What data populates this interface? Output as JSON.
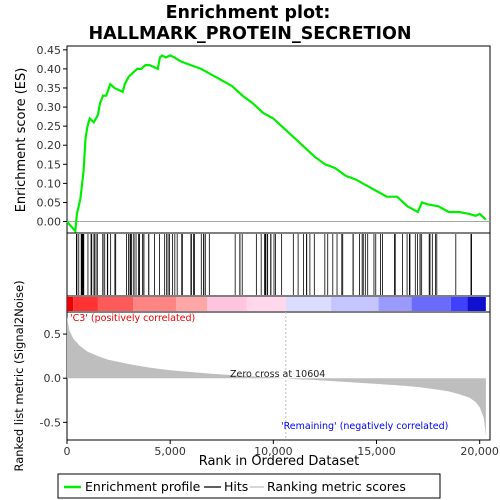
{
  "title_line1": "Enrichment plot:",
  "title_line2": "HALLMARK_PROTEIN_SECRETION",
  "colors": {
    "es_curve": "#00ee00",
    "hits": "#000000",
    "metric_fill": "#bebebe",
    "zero_line": "#c0c0c0",
    "pos_label": "#ee0000",
    "neg_label": "#0000ee",
    "axis": "#000000"
  },
  "annotations": {
    "positive": "'C3' (positively correlated)",
    "zero_cross": "Zero cross at 10604",
    "negative": "'Remaining' (negatively correlated)"
  },
  "legend": {
    "items": [
      {
        "label": "Enrichment profile",
        "icon": "green-line"
      },
      {
        "label": "Hits",
        "icon": "black-line"
      },
      {
        "label": "Ranking metric scores",
        "icon": "gray-line"
      }
    ]
  },
  "chart_data": [
    {
      "type": "line",
      "ylabel": "Enrichment score (ES)",
      "ylim": [
        -0.03,
        0.46
      ],
      "xlim": [
        0,
        20500
      ],
      "yticks": [
        "0.00",
        "0.05",
        "0.10",
        "0.15",
        "0.20",
        "0.25",
        "0.30",
        "0.35",
        "0.40",
        "0.45"
      ],
      "grid": false,
      "series": [
        {
          "x": [
            0,
            400,
            480,
            650,
            800,
            900,
            1000,
            1100,
            1300,
            1500,
            1600,
            1750,
            1900,
            2100,
            2300,
            2500,
            2700,
            2800,
            2900,
            3000,
            3200,
            3400,
            3600,
            3800,
            4000,
            4200,
            4400,
            4500,
            4600,
            4800,
            5000,
            5200,
            5500,
            6000,
            6500,
            7000,
            7500,
            8000,
            8500,
            9000,
            9500,
            10000,
            10500,
            11000,
            11500,
            12000,
            12500,
            13000,
            13500,
            14000,
            14500,
            15000,
            15500,
            16000,
            16500,
            17000,
            17200,
            17500,
            18000,
            18500,
            19000,
            19500,
            19800,
            20000,
            20300
          ],
          "y": [
            0.0,
            -0.025,
            0.02,
            0.06,
            0.13,
            0.22,
            0.25,
            0.27,
            0.26,
            0.28,
            0.31,
            0.33,
            0.33,
            0.36,
            0.35,
            0.345,
            0.34,
            0.36,
            0.37,
            0.38,
            0.39,
            0.4,
            0.4,
            0.41,
            0.41,
            0.405,
            0.4,
            0.43,
            0.435,
            0.43,
            0.435,
            0.43,
            0.42,
            0.41,
            0.4,
            0.385,
            0.37,
            0.355,
            0.33,
            0.31,
            0.285,
            0.27,
            0.245,
            0.22,
            0.195,
            0.17,
            0.15,
            0.14,
            0.12,
            0.11,
            0.095,
            0.08,
            0.065,
            0.065,
            0.04,
            0.025,
            0.05,
            0.045,
            0.04,
            0.025,
            0.025,
            0.02,
            0.015,
            0.02,
            0.005
          ]
        }
      ]
    },
    {
      "type": "line",
      "ylabel": "Ranked list metric (Signal2Noise)",
      "xlabel": "Rank in Ordered Dataset",
      "ylim": [
        -0.7,
        0.75
      ],
      "xlim": [
        0,
        20500
      ],
      "yticks": [
        "0.5",
        "0.0",
        "-0.5"
      ],
      "xticks": [
        "0",
        "5,000",
        "10,000",
        "15,000",
        "20,000"
      ],
      "zero_cross": 10604,
      "series": [
        {
          "x": [
            0,
            100,
            300,
            600,
            1000,
            1500,
            2000,
            3000,
            4000,
            5000,
            6000,
            7000,
            8000,
            9000,
            10000,
            10604,
            11000,
            12000,
            13000,
            14000,
            15000,
            16000,
            17000,
            18000,
            18500,
            19000,
            19500,
            19800,
            20000,
            20200,
            20300
          ],
          "y": [
            0.7,
            0.55,
            0.45,
            0.37,
            0.3,
            0.25,
            0.21,
            0.16,
            0.12,
            0.09,
            0.07,
            0.05,
            0.035,
            0.02,
            0.01,
            0.0,
            -0.01,
            -0.02,
            -0.035,
            -0.05,
            -0.065,
            -0.08,
            -0.1,
            -0.13,
            -0.15,
            -0.18,
            -0.22,
            -0.27,
            -0.33,
            -0.45,
            -0.65
          ]
        }
      ]
    }
  ]
}
